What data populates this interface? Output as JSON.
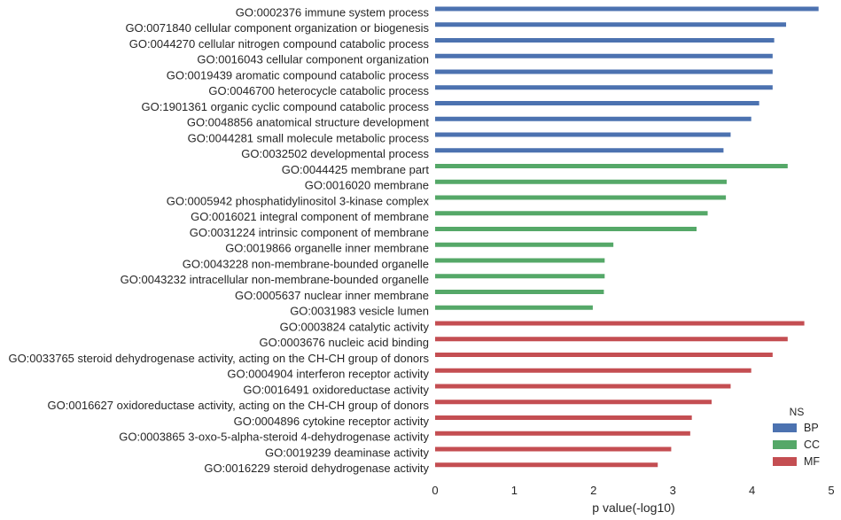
{
  "chart_data": {
    "type": "bar",
    "orientation": "horizontal",
    "xlabel": "p value(-log10)",
    "xlim": [
      0,
      5
    ],
    "x_ticks": [
      "0",
      "1",
      "2",
      "3",
      "4",
      "5"
    ],
    "grid": false,
    "legend": {
      "title": "NS",
      "placement": "bottom-right",
      "entries": [
        {
          "name": "BP",
          "color": "#4c72b0"
        },
        {
          "name": "CC",
          "color": "#55a868"
        },
        {
          "name": "MF",
          "color": "#c44e52"
        }
      ]
    },
    "bars": [
      {
        "label": "GO:0002376 immune system process",
        "value": 4.84,
        "group": "BP"
      },
      {
        "label": "GO:0071840 cellular component organization or biogenesis",
        "value": 4.43,
        "group": "BP"
      },
      {
        "label": "GO:0044270 cellular nitrogen compound catabolic process",
        "value": 4.28,
        "group": "BP"
      },
      {
        "label": "GO:0016043 cellular component organization",
        "value": 4.26,
        "group": "BP"
      },
      {
        "label": "GO:0019439 aromatic compound catabolic process",
        "value": 4.26,
        "group": "BP"
      },
      {
        "label": "GO:0046700 heterocycle catabolic process",
        "value": 4.26,
        "group": "BP"
      },
      {
        "label": "GO:1901361 organic cyclic compound catabolic process",
        "value": 4.09,
        "group": "BP"
      },
      {
        "label": "GO:0048856 anatomical structure development",
        "value": 3.99,
        "group": "BP"
      },
      {
        "label": "GO:0044281 small molecule metabolic process",
        "value": 3.73,
        "group": "BP"
      },
      {
        "label": "GO:0032502 developmental process",
        "value": 3.64,
        "group": "BP"
      },
      {
        "label": "GO:0044425 membrane part",
        "value": 4.45,
        "group": "CC"
      },
      {
        "label": "GO:0016020 membrane",
        "value": 3.68,
        "group": "CC"
      },
      {
        "label": "GO:0005942 phosphatidylinositol 3-kinase complex",
        "value": 3.67,
        "group": "CC"
      },
      {
        "label": "GO:0016021 integral component of membrane",
        "value": 3.44,
        "group": "CC"
      },
      {
        "label": "GO:0031224 intrinsic component of membrane",
        "value": 3.3,
        "group": "CC"
      },
      {
        "label": "GO:0019866 organelle inner membrane",
        "value": 2.25,
        "group": "CC"
      },
      {
        "label": "GO:0043228 non-membrane-bounded organelle",
        "value": 2.14,
        "group": "CC"
      },
      {
        "label": "GO:0043232 intracellular non-membrane-bounded organelle",
        "value": 2.14,
        "group": "CC"
      },
      {
        "label": "GO:0005637 nuclear inner membrane",
        "value": 2.13,
        "group": "CC"
      },
      {
        "label": "GO:0031983 vesicle lumen",
        "value": 1.99,
        "group": "CC"
      },
      {
        "label": "GO:0003824 catalytic activity",
        "value": 4.66,
        "group": "MF"
      },
      {
        "label": "GO:0003676 nucleic acid binding",
        "value": 4.45,
        "group": "MF"
      },
      {
        "label": "GO:0033765 steroid dehydrogenase activity, acting on the CH-CH group of donors",
        "value": 4.26,
        "group": "MF"
      },
      {
        "label": "GO:0004904 interferon receptor activity",
        "value": 3.99,
        "group": "MF"
      },
      {
        "label": "GO:0016491 oxidoreductase activity",
        "value": 3.73,
        "group": "MF"
      },
      {
        "label": "GO:0016627 oxidoreductase activity, acting on the CH-CH group of donors",
        "value": 3.49,
        "group": "MF"
      },
      {
        "label": "GO:0004896 cytokine receptor activity",
        "value": 3.24,
        "group": "MF"
      },
      {
        "label": "GO:0003865 3-oxo-5-alpha-steroid 4-dehydrogenase activity",
        "value": 3.22,
        "group": "MF"
      },
      {
        "label": "GO:0019239 deaminase activity",
        "value": 2.98,
        "group": "MF"
      },
      {
        "label": "GO:0016229 steroid dehydrogenase activity",
        "value": 2.81,
        "group": "MF"
      }
    ]
  }
}
